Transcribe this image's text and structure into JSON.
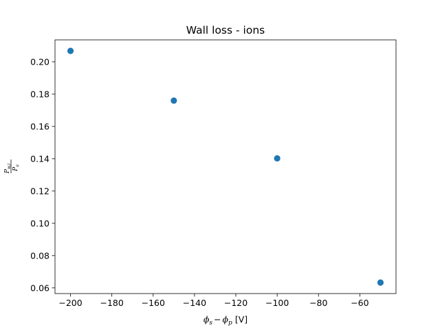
{
  "chart_data": {
    "type": "scatter",
    "title": "Wall loss - ions",
    "xlabel": {
      "phi": "ϕ",
      "sub_s": "s",
      "minus": "−",
      "sub_p": "p",
      "unit": "[V]"
    },
    "ylabel": {
      "numerator": "P",
      "numerator_sub": "w,i",
      "denominator": "P",
      "denominator_sub": "a"
    },
    "x": [
      -200,
      -150,
      -100,
      -50
    ],
    "y": [
      0.2068,
      0.176,
      0.1402,
      0.0633
    ],
    "xlim": [
      -207.5,
      -42.5
    ],
    "ylim": [
      0.0565,
      0.2136
    ],
    "xticks": [
      -200,
      -180,
      -160,
      -140,
      -120,
      -100,
      -80,
      -60
    ],
    "xtick_labels": [
      "−200",
      "−180",
      "−160",
      "−140",
      "−120",
      "−100",
      "−80",
      "−60"
    ],
    "yticks": [
      0.06,
      0.08,
      0.1,
      0.12,
      0.14,
      0.16,
      0.18,
      0.2
    ],
    "ytick_labels": [
      "0.06",
      "0.08",
      "0.10",
      "0.12",
      "0.14",
      "0.16",
      "0.18",
      "0.20"
    ],
    "grid": false,
    "marker_color": "#1f77b4"
  }
}
